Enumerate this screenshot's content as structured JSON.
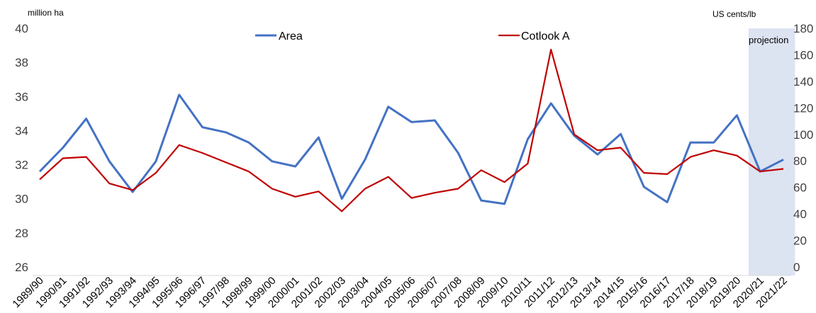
{
  "chart_data": {
    "type": "line",
    "left_axis_unit": "million ha",
    "right_axis_unit": "US cents/lb",
    "projection_label": "projection",
    "categories": [
      "1989/90",
      "1990/91",
      "1991/92",
      "1992/93",
      "1993/94",
      "1994/95",
      "1995/96",
      "1996/97",
      "1997/98",
      "1998/99",
      "1999/00",
      "2000/01",
      "2001/02",
      "2002/03",
      "2003/04",
      "2004/05",
      "2005/06",
      "2006/07",
      "2007/08",
      "2008/09",
      "2009/10",
      "2010/11",
      "2011/12",
      "2012/13",
      "2013/14",
      "2014/15",
      "2015/16",
      "2016/17",
      "2017/18",
      "2018/19",
      "2019/20",
      "2020/21",
      "2021/22"
    ],
    "ylim_left": [
      26,
      40
    ],
    "yticks_left": [
      "26",
      "28",
      "30",
      "32",
      "34",
      "36",
      "38",
      "40"
    ],
    "ylim_right": [
      0,
      180
    ],
    "yticks_right": [
      "0",
      "20",
      "40",
      "60",
      "80",
      "100",
      "120",
      "140",
      "160",
      "180"
    ],
    "projection_start_category": "2020/21",
    "legend_position": "top",
    "grid": false,
    "series": [
      {
        "name": "Area",
        "axis": "left",
        "color": "#4472c4",
        "values": [
          31.6,
          33.0,
          34.7,
          32.2,
          30.4,
          32.2,
          36.1,
          34.2,
          33.9,
          33.3,
          32.2,
          31.9,
          33.6,
          30.0,
          32.3,
          35.4,
          34.5,
          34.6,
          32.7,
          29.9,
          29.7,
          33.5,
          35.6,
          33.7,
          32.6,
          33.8,
          30.7,
          29.8,
          33.3,
          33.3,
          34.9,
          31.6,
          32.3
        ]
      },
      {
        "name": "Cotlook A",
        "axis": "right",
        "color": "#c00000",
        "values": [
          66,
          82,
          83,
          63,
          58,
          71,
          92,
          86,
          79,
          72,
          59,
          53,
          57,
          42,
          59,
          68,
          52,
          56,
          59,
          73,
          64,
          78,
          164,
          100,
          88,
          90,
          71,
          70,
          83,
          88,
          84,
          72,
          74
        ]
      }
    ]
  }
}
